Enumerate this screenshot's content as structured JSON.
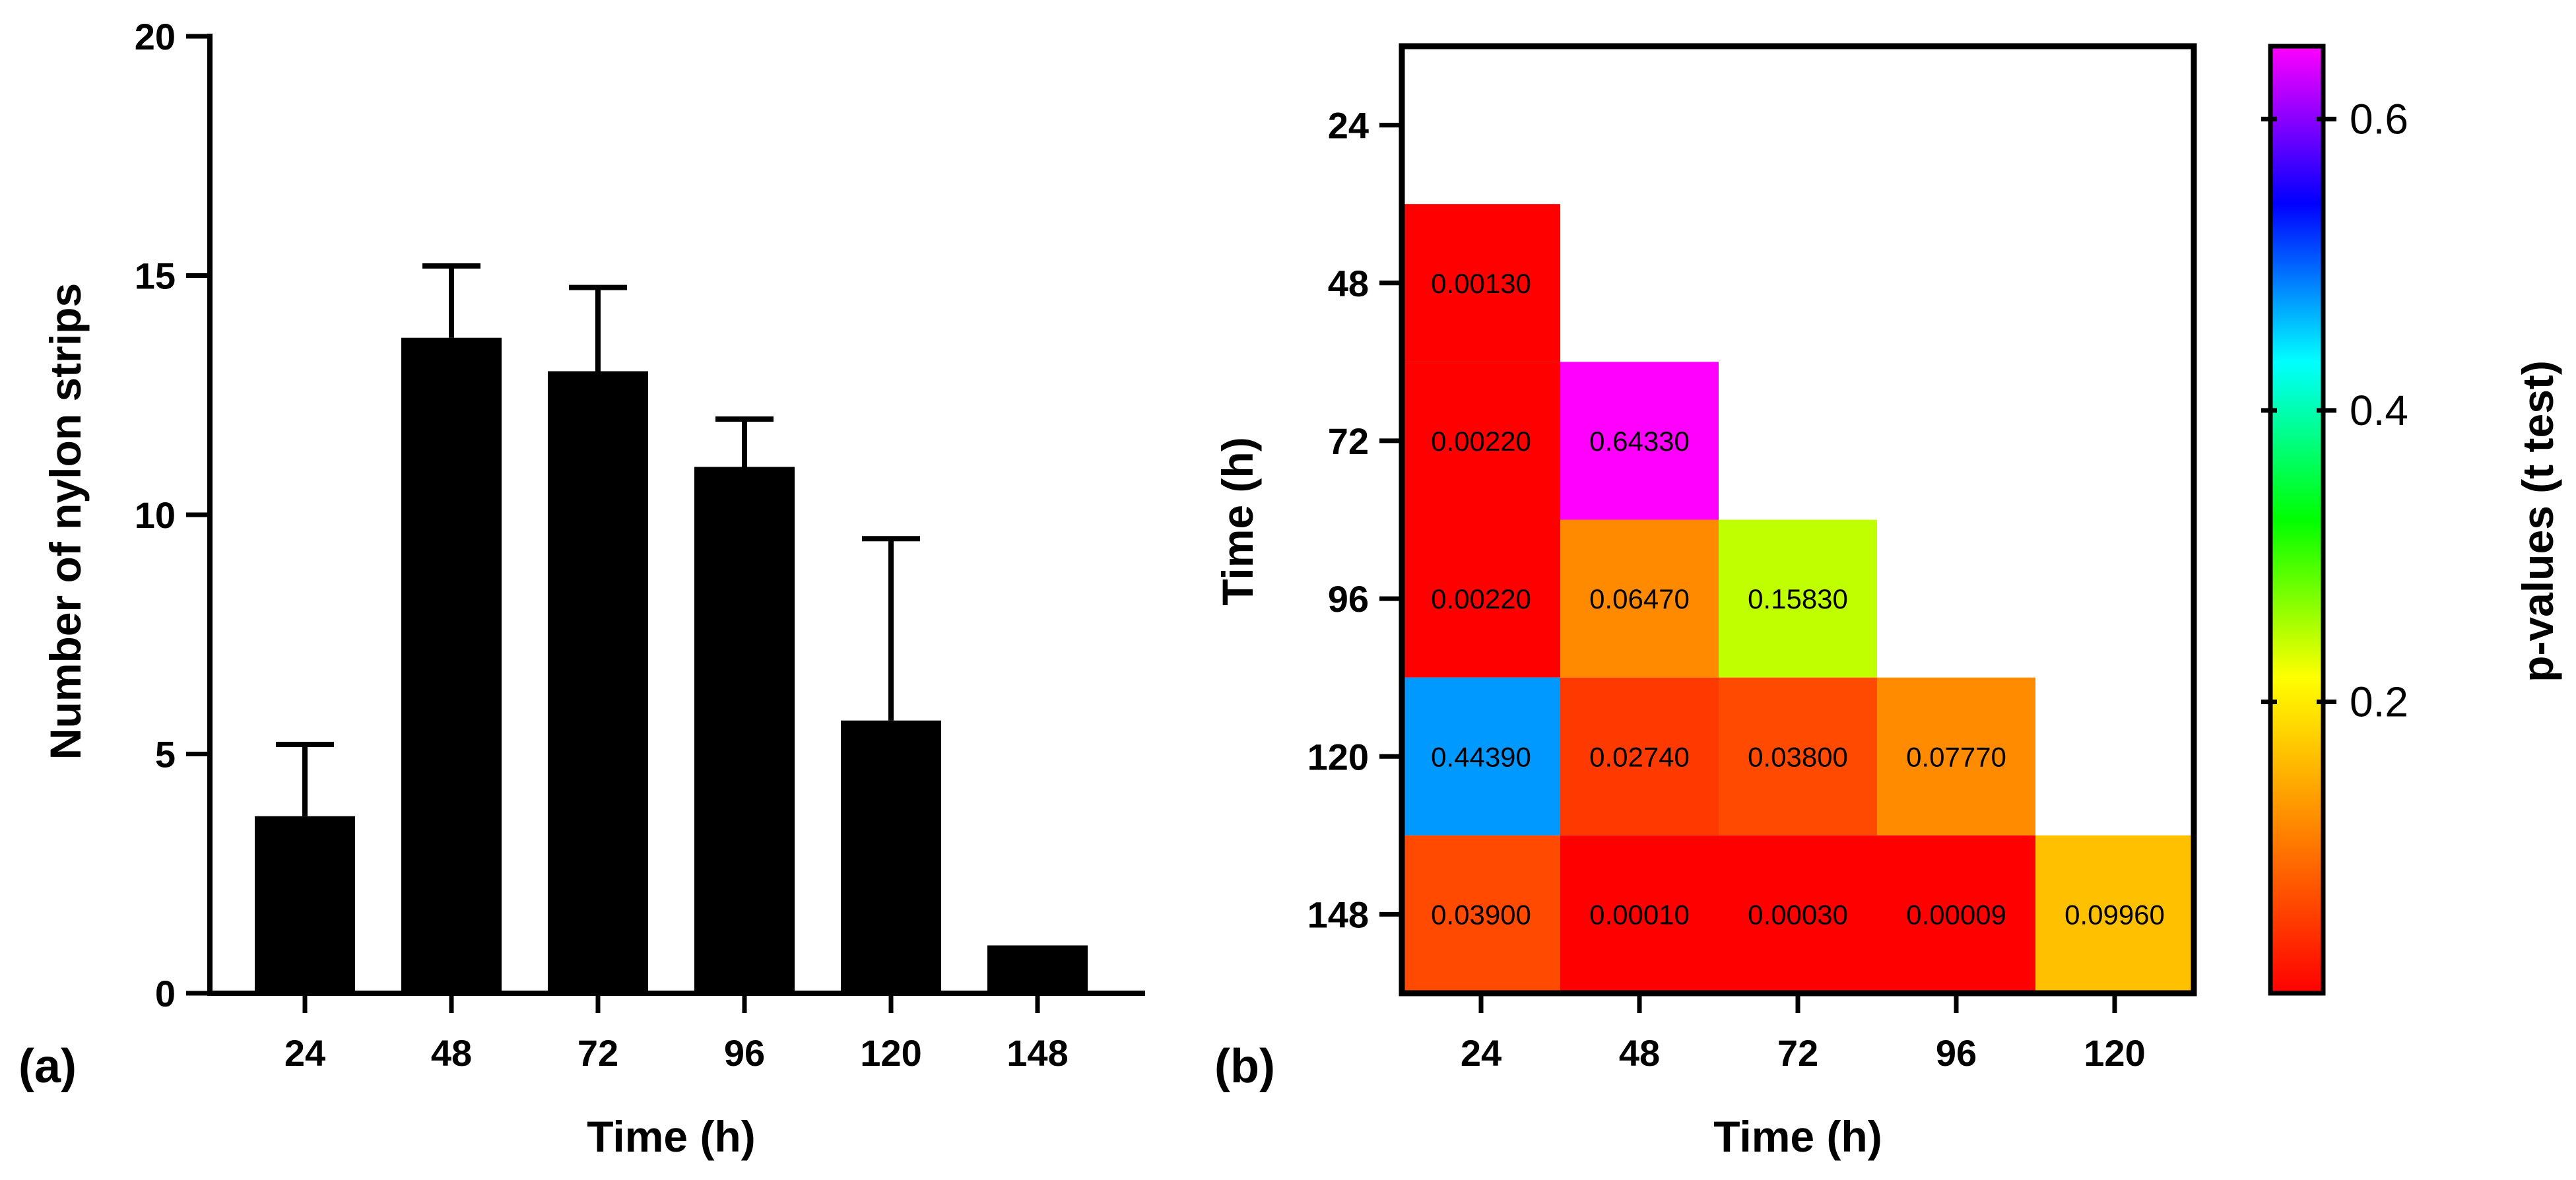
{
  "chart_data": [
    {
      "type": "bar",
      "panel_label": "(a)",
      "categories": [
        "24",
        "48",
        "72",
        "96",
        "120",
        "148"
      ],
      "values": [
        3.7,
        13.7,
        13.0,
        11.0,
        5.7,
        1.0
      ],
      "error_upper": [
        1.5,
        1.5,
        1.75,
        1.0,
        3.8,
        0
      ],
      "xlabel": "Time (h)",
      "ylabel": "Number of nylon strips",
      "ylim": [
        0,
        20
      ],
      "yticks": [
        "0",
        "5",
        "10",
        "15",
        "20"
      ],
      "ytick_values": [
        0,
        5,
        10,
        15,
        20
      ],
      "bar_color": "#000000"
    },
    {
      "type": "heatmap",
      "panel_label": "(b)",
      "x_categories": [
        "24",
        "48",
        "72",
        "96",
        "120"
      ],
      "y_categories": [
        "24",
        "48",
        "72",
        "96",
        "120",
        "148"
      ],
      "xlabel": "Time (h)",
      "ylabel": "Time (h)",
      "cells": [
        {
          "x": "24",
          "y": "48",
          "value": 0.0013,
          "label": "0.00130",
          "color": "#ff0000"
        },
        {
          "x": "24",
          "y": "72",
          "value": 0.0022,
          "label": "0.00220",
          "color": "#ff0000"
        },
        {
          "x": "48",
          "y": "72",
          "value": 0.6433,
          "label": "0.64330",
          "color": "#ff00ff"
        },
        {
          "x": "24",
          "y": "96",
          "value": 0.0022,
          "label": "0.00220",
          "color": "#ff0000"
        },
        {
          "x": "48",
          "y": "96",
          "value": 0.0647,
          "label": "0.06470",
          "color": "#ff8a00"
        },
        {
          "x": "72",
          "y": "96",
          "value": 0.1583,
          "label": "0.15830",
          "color": "#c0ff00"
        },
        {
          "x": "24",
          "y": "120",
          "value": 0.4439,
          "label": "0.44390",
          "color": "#0099ff"
        },
        {
          "x": "48",
          "y": "120",
          "value": 0.0274,
          "label": "0.02740",
          "color": "#ff3a00"
        },
        {
          "x": "72",
          "y": "120",
          "value": 0.038,
          "label": "0.03800",
          "color": "#ff4a00"
        },
        {
          "x": "96",
          "y": "120",
          "value": 0.0777,
          "label": "0.07770",
          "color": "#ff8c00"
        },
        {
          "x": "24",
          "y": "148",
          "value": 0.039,
          "label": "0.03900",
          "color": "#ff4a00"
        },
        {
          "x": "48",
          "y": "148",
          "value": 0.0001,
          "label": "0.00010",
          "color": "#ff0000"
        },
        {
          "x": "72",
          "y": "148",
          "value": 0.0003,
          "label": "0.00030",
          "color": "#ff0000"
        },
        {
          "x": "96",
          "y": "148",
          "value": 9e-05,
          "label": "0.00009",
          "color": "#ff0000"
        },
        {
          "x": "120",
          "y": "148",
          "value": 0.0996,
          "label": "0.09960",
          "color": "#ffc000"
        }
      ],
      "colorbar": {
        "title": "p-values (t test)",
        "range": [
          0,
          0.65
        ],
        "ticks": [
          "0.2",
          "0.4",
          "0.6"
        ],
        "tick_values": [
          0.2,
          0.4,
          0.6
        ],
        "gradient": [
          "#ff0000",
          "#ff8000",
          "#ffff00",
          "#00ff00",
          "#00ffff",
          "#0000ff",
          "#ff00ff"
        ]
      }
    }
  ]
}
